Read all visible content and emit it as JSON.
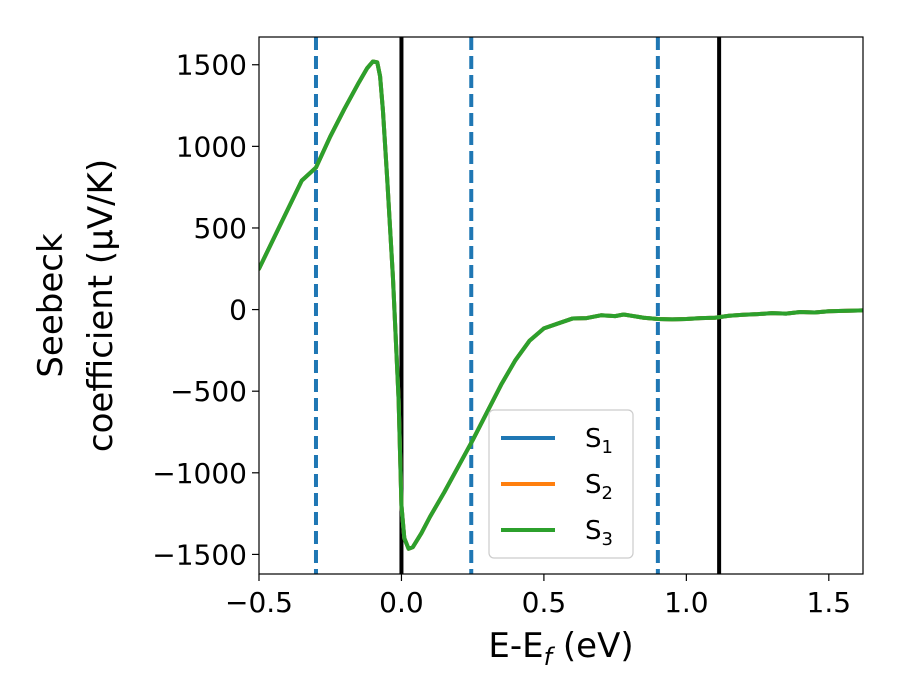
{
  "chart_data": {
    "type": "line",
    "xlabel": "E-E",
    "xlabel_sub": "f",
    "xlabel_unit": " (eV)",
    "ylabel_line1": "Seebeck",
    "ylabel_line2": "coefficient  (μV/K)",
    "xlim": [
      -0.5,
      1.62
    ],
    "ylim": [
      -1620,
      1670
    ],
    "x_ticks": [
      -0.5,
      0.0,
      0.5,
      1.0,
      1.5
    ],
    "x_tick_labels": [
      "−0.5",
      "0.0",
      "0.5",
      "1.0",
      "1.5"
    ],
    "y_ticks": [
      -1500,
      -1000,
      -500,
      0,
      500,
      1000,
      1500
    ],
    "y_tick_labels": [
      "−1500",
      "−1000",
      "−500",
      "0",
      "500",
      "1000",
      "1500"
    ],
    "grid": false,
    "legend_position": "lower-center",
    "series": [
      {
        "name": "S",
        "sub": "1",
        "color": "#1f77b4",
        "points": [
          [
            -0.5,
            250
          ],
          [
            -0.45,
            430
          ],
          [
            -0.4,
            610
          ],
          [
            -0.35,
            790
          ],
          [
            -0.3,
            870
          ],
          [
            -0.25,
            1060
          ],
          [
            -0.2,
            1230
          ],
          [
            -0.15,
            1390
          ],
          [
            -0.12,
            1480
          ],
          [
            -0.1,
            1520
          ],
          [
            -0.085,
            1515
          ],
          [
            -0.075,
            1430
          ],
          [
            -0.065,
            1220
          ],
          [
            -0.05,
            800
          ],
          [
            -0.03,
            200
          ],
          [
            -0.01,
            -550
          ],
          [
            0.0,
            -1200
          ],
          [
            0.01,
            -1400
          ],
          [
            0.025,
            -1465
          ],
          [
            0.04,
            -1455
          ],
          [
            0.07,
            -1370
          ],
          [
            0.1,
            -1270
          ],
          [
            0.15,
            -1120
          ],
          [
            0.2,
            -960
          ],
          [
            0.25,
            -800
          ],
          [
            0.3,
            -630
          ],
          [
            0.35,
            -460
          ],
          [
            0.4,
            -310
          ],
          [
            0.45,
            -190
          ],
          [
            0.5,
            -115
          ],
          [
            0.55,
            -85
          ],
          [
            0.6,
            -55
          ],
          [
            0.65,
            -52
          ],
          [
            0.7,
            -35
          ],
          [
            0.75,
            -40
          ],
          [
            0.78,
            -30
          ],
          [
            0.85,
            -50
          ],
          [
            0.9,
            -58
          ],
          [
            0.95,
            -60
          ],
          [
            1.0,
            -58
          ],
          [
            1.05,
            -52
          ],
          [
            1.1,
            -50
          ],
          [
            1.15,
            -38
          ],
          [
            1.2,
            -32
          ],
          [
            1.25,
            -28
          ],
          [
            1.3,
            -22
          ],
          [
            1.35,
            -25
          ],
          [
            1.4,
            -15
          ],
          [
            1.45,
            -18
          ],
          [
            1.5,
            -10
          ],
          [
            1.55,
            -8
          ],
          [
            1.62,
            -5
          ]
        ]
      },
      {
        "name": "S",
        "sub": "2",
        "color": "#ff7f0e",
        "points": [
          [
            -0.5,
            250
          ],
          [
            -0.45,
            430
          ],
          [
            -0.4,
            610
          ],
          [
            -0.35,
            790
          ],
          [
            -0.3,
            870
          ],
          [
            -0.25,
            1060
          ],
          [
            -0.2,
            1230
          ],
          [
            -0.15,
            1390
          ],
          [
            -0.12,
            1480
          ],
          [
            -0.1,
            1520
          ],
          [
            -0.085,
            1515
          ],
          [
            -0.075,
            1430
          ],
          [
            -0.065,
            1220
          ],
          [
            -0.05,
            800
          ],
          [
            -0.03,
            200
          ],
          [
            -0.01,
            -550
          ],
          [
            0.0,
            -1200
          ],
          [
            0.01,
            -1400
          ],
          [
            0.025,
            -1465
          ],
          [
            0.04,
            -1455
          ],
          [
            0.07,
            -1370
          ],
          [
            0.1,
            -1270
          ],
          [
            0.15,
            -1120
          ],
          [
            0.2,
            -960
          ],
          [
            0.25,
            -800
          ],
          [
            0.3,
            -630
          ],
          [
            0.35,
            -460
          ],
          [
            0.4,
            -310
          ],
          [
            0.45,
            -190
          ],
          [
            0.5,
            -115
          ],
          [
            0.55,
            -85
          ],
          [
            0.6,
            -55
          ],
          [
            0.65,
            -52
          ],
          [
            0.7,
            -35
          ],
          [
            0.75,
            -40
          ],
          [
            0.78,
            -30
          ],
          [
            0.85,
            -50
          ],
          [
            0.9,
            -58
          ],
          [
            0.95,
            -60
          ],
          [
            1.0,
            -58
          ],
          [
            1.05,
            -52
          ],
          [
            1.1,
            -50
          ],
          [
            1.15,
            -38
          ],
          [
            1.2,
            -32
          ],
          [
            1.25,
            -28
          ],
          [
            1.3,
            -22
          ],
          [
            1.35,
            -25
          ],
          [
            1.4,
            -15
          ],
          [
            1.45,
            -18
          ],
          [
            1.5,
            -10
          ],
          [
            1.55,
            -8
          ],
          [
            1.62,
            -5
          ]
        ]
      },
      {
        "name": "S",
        "sub": "3",
        "color": "#2ca02c",
        "points": [
          [
            -0.5,
            250
          ],
          [
            -0.45,
            430
          ],
          [
            -0.4,
            610
          ],
          [
            -0.35,
            790
          ],
          [
            -0.3,
            870
          ],
          [
            -0.25,
            1060
          ],
          [
            -0.2,
            1230
          ],
          [
            -0.15,
            1390
          ],
          [
            -0.12,
            1480
          ],
          [
            -0.1,
            1520
          ],
          [
            -0.085,
            1515
          ],
          [
            -0.075,
            1430
          ],
          [
            -0.065,
            1220
          ],
          [
            -0.05,
            800
          ],
          [
            -0.03,
            200
          ],
          [
            -0.01,
            -550
          ],
          [
            0.0,
            -1200
          ],
          [
            0.01,
            -1400
          ],
          [
            0.025,
            -1465
          ],
          [
            0.04,
            -1455
          ],
          [
            0.07,
            -1370
          ],
          [
            0.1,
            -1270
          ],
          [
            0.15,
            -1120
          ],
          [
            0.2,
            -960
          ],
          [
            0.25,
            -800
          ],
          [
            0.3,
            -630
          ],
          [
            0.35,
            -460
          ],
          [
            0.4,
            -310
          ],
          [
            0.45,
            -190
          ],
          [
            0.5,
            -115
          ],
          [
            0.55,
            -85
          ],
          [
            0.6,
            -55
          ],
          [
            0.65,
            -52
          ],
          [
            0.7,
            -35
          ],
          [
            0.75,
            -40
          ],
          [
            0.78,
            -30
          ],
          [
            0.85,
            -50
          ],
          [
            0.9,
            -58
          ],
          [
            0.95,
            -60
          ],
          [
            1.0,
            -58
          ],
          [
            1.05,
            -52
          ],
          [
            1.1,
            -50
          ],
          [
            1.15,
            -38
          ],
          [
            1.2,
            -32
          ],
          [
            1.25,
            -28
          ],
          [
            1.3,
            -22
          ],
          [
            1.35,
            -25
          ],
          [
            1.4,
            -15
          ],
          [
            1.45,
            -18
          ],
          [
            1.5,
            -10
          ],
          [
            1.55,
            -8
          ],
          [
            1.62,
            -5
          ]
        ]
      }
    ],
    "vertical_lines": [
      {
        "x": -0.3,
        "style": "dashed",
        "color": "#1f77b4"
      },
      {
        "x": 0.0,
        "style": "solid",
        "color": "#000000"
      },
      {
        "x": 0.245,
        "style": "dashed",
        "color": "#1f77b4"
      },
      {
        "x": 0.9,
        "style": "dashed",
        "color": "#1f77b4"
      },
      {
        "x": 1.115,
        "style": "solid",
        "color": "#000000"
      }
    ]
  }
}
